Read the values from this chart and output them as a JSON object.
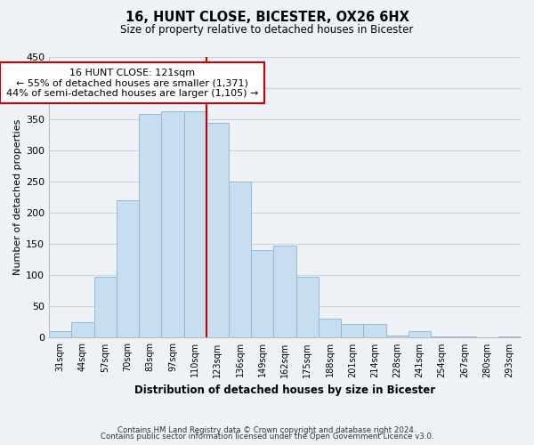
{
  "title": "16, HUNT CLOSE, BICESTER, OX26 6HX",
  "subtitle": "Size of property relative to detached houses in Bicester",
  "xlabel": "Distribution of detached houses by size in Bicester",
  "ylabel": "Number of detached properties",
  "categories": [
    "31sqm",
    "44sqm",
    "57sqm",
    "70sqm",
    "83sqm",
    "97sqm",
    "110sqm",
    "123sqm",
    "136sqm",
    "149sqm",
    "162sqm",
    "175sqm",
    "188sqm",
    "201sqm",
    "214sqm",
    "228sqm",
    "241sqm",
    "254sqm",
    "267sqm",
    "280sqm",
    "293sqm"
  ],
  "values": [
    10,
    25,
    98,
    220,
    358,
    363,
    363,
    345,
    250,
    140,
    148,
    97,
    31,
    22,
    22,
    4,
    11,
    2,
    2,
    1,
    2
  ],
  "bar_color": "#c8ddef",
  "bar_edge_color": "#92bcd4",
  "reference_line_index": 7,
  "reference_line_color": "#cc0000",
  "annotation_line1": "16 HUNT CLOSE: 121sqm",
  "annotation_line2": "← 55% of detached houses are smaller (1,371)",
  "annotation_line3": "44% of semi-detached houses are larger (1,105) →",
  "annotation_box_color": "#ffffff",
  "annotation_box_edge_color": "#cc0000",
  "ylim": [
    0,
    450
  ],
  "yticks": [
    0,
    50,
    100,
    150,
    200,
    250,
    300,
    350,
    400,
    450
  ],
  "footnote_line1": "Contains HM Land Registry data © Crown copyright and database right 2024.",
  "footnote_line2": "Contains public sector information licensed under the Open Government Licence v3.0.",
  "background_color": "#eef2f7",
  "plot_background_color": "#eef2f7",
  "grid_color": "#c8d4e0"
}
